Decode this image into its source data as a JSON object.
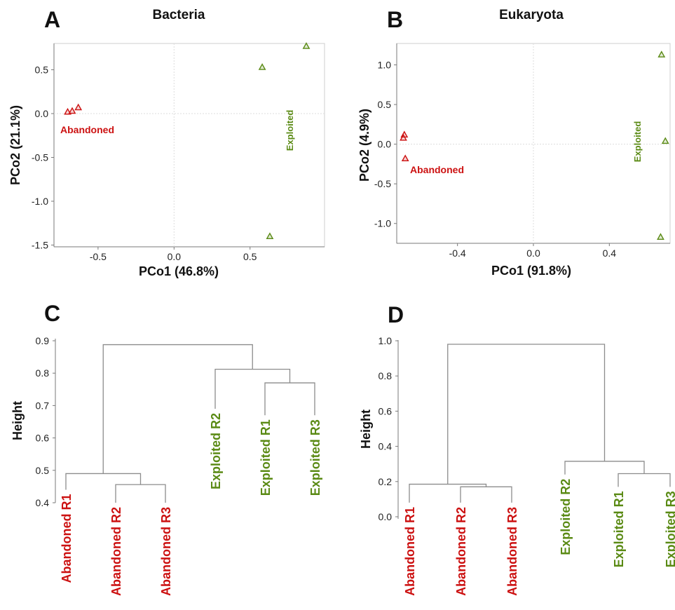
{
  "colors": {
    "abandoned": "#cc1111",
    "exploited": "#5a8a14",
    "text": "#111111"
  },
  "chart_data": [
    {
      "panel": "A",
      "type": "scatter",
      "title": "Bacteria",
      "xlabel": "PCo1 (46.8%)",
      "ylabel": "PCo2 (21.1%)",
      "xlim": [
        -0.79,
        0.99
      ],
      "ylim": [
        -1.52,
        0.8
      ],
      "xticks": [
        -0.5,
        0.0,
        0.5
      ],
      "xtick_labels": [
        "-0.5",
        "0.0",
        "0.5"
      ],
      "yticks": [
        0.5,
        0.0,
        -0.5,
        -1.0,
        -1.5
      ],
      "ytick_labels": [
        "0.5",
        "0.0",
        "-0.5",
        "-1.0",
        "-1.5"
      ],
      "grid": "zero lines only",
      "series": [
        {
          "name": "Abandoned",
          "color": "#cc1111",
          "label_rotation": 0,
          "x": [
            -0.7,
            -0.67,
            -0.63
          ],
          "y": [
            0.02,
            0.03,
            0.07
          ]
        },
        {
          "name": "Exploited",
          "color": "#5a8a14",
          "label_rotation": -90,
          "x": [
            0.58,
            0.87,
            0.63
          ],
          "y": [
            0.53,
            0.77,
            -1.4
          ]
        }
      ]
    },
    {
      "panel": "B",
      "type": "scatter",
      "title": "Eukaryota",
      "xlabel": "PCo1 (91.8%)",
      "ylabel": "PCo2 (4.9%)",
      "xlim": [
        -0.72,
        0.72
      ],
      "ylim": [
        -1.25,
        1.27
      ],
      "xticks": [
        -0.4,
        0.0,
        0.4
      ],
      "xtick_labels": [
        "-0.4",
        "0.0",
        "0.4"
      ],
      "yticks": [
        1.0,
        0.5,
        0.0,
        -0.5,
        -1.0
      ],
      "ytick_labels": [
        "1.0",
        "0.5",
        "0.0",
        "-0.5",
        "-1.0"
      ],
      "grid": "zero lines only",
      "series": [
        {
          "name": "Abandoned",
          "color": "#cc1111",
          "label_rotation": 0,
          "x": [
            -0.685,
            -0.68,
            -0.675
          ],
          "y": [
            0.08,
            0.12,
            -0.18
          ]
        },
        {
          "name": "Exploited",
          "color": "#5a8a14",
          "label_rotation": -90,
          "x": [
            0.675,
            0.695,
            0.67
          ],
          "y": [
            1.13,
            0.04,
            -1.17
          ]
        }
      ]
    },
    {
      "panel": "C",
      "type": "dendrogram",
      "ylabel": "Height",
      "ylim": [
        0.4,
        0.9
      ],
      "yticks": [
        0.9,
        0.8,
        0.7,
        0.6,
        0.5,
        0.4
      ],
      "ytick_labels": [
        "0.9",
        "0.8",
        "0.7",
        "0.6",
        "0.5",
        "0.4"
      ],
      "leaves": [
        {
          "label": "Abandoned R1",
          "group": "abandoned",
          "bottom": 0.44
        },
        {
          "label": "Abandoned R2",
          "group": "abandoned",
          "bottom": 0.4
        },
        {
          "label": "Abandoned R3",
          "group": "abandoned",
          "bottom": 0.4
        },
        {
          "label": "Exploited R2",
          "group": "exploited",
          "bottom": 0.69
        },
        {
          "label": "Exploited R1",
          "group": "exploited",
          "bottom": 0.67
        },
        {
          "label": "Exploited R3",
          "group": "exploited",
          "bottom": 0.67
        }
      ],
      "merges": [
        {
          "a": 1,
          "b": 2,
          "height": 0.456
        },
        {
          "a": 0,
          "b": "m0",
          "height": 0.49
        },
        {
          "a": 4,
          "b": 5,
          "height": 0.77
        },
        {
          "a": 3,
          "b": "m2",
          "height": 0.812
        },
        {
          "a": "m1",
          "b": "m3",
          "height": 0.888
        }
      ]
    },
    {
      "panel": "D",
      "type": "dendrogram",
      "ylabel": "Height",
      "ylim": [
        0.0,
        1.0
      ],
      "yticks": [
        1.0,
        0.8,
        0.6,
        0.4,
        0.2,
        0.0
      ],
      "ytick_labels": [
        "1.0",
        "0.8",
        "0.6",
        "0.4",
        "0.2",
        "0.0"
      ],
      "leaves": [
        {
          "label": "Abandoned R1",
          "group": "abandoned",
          "bottom": 0.08
        },
        {
          "label": "Abandoned R2",
          "group": "abandoned",
          "bottom": 0.08
        },
        {
          "label": "Abandoned R3",
          "group": "abandoned",
          "bottom": 0.08
        },
        {
          "label": "Exploited R2",
          "group": "exploited",
          "bottom": 0.24
        },
        {
          "label": "Exploited R1",
          "group": "exploited",
          "bottom": 0.17
        },
        {
          "label": "Exploited R3",
          "group": "exploited",
          "bottom": 0.17
        }
      ],
      "merges": [
        {
          "a": 1,
          "b": 2,
          "height": 0.17
        },
        {
          "a": 0,
          "b": "m0",
          "height": 0.185
        },
        {
          "a": 4,
          "b": 5,
          "height": 0.245
        },
        {
          "a": 3,
          "b": "m2",
          "height": 0.315
        },
        {
          "a": "m1",
          "b": "m3",
          "height": 0.98
        }
      ]
    }
  ]
}
